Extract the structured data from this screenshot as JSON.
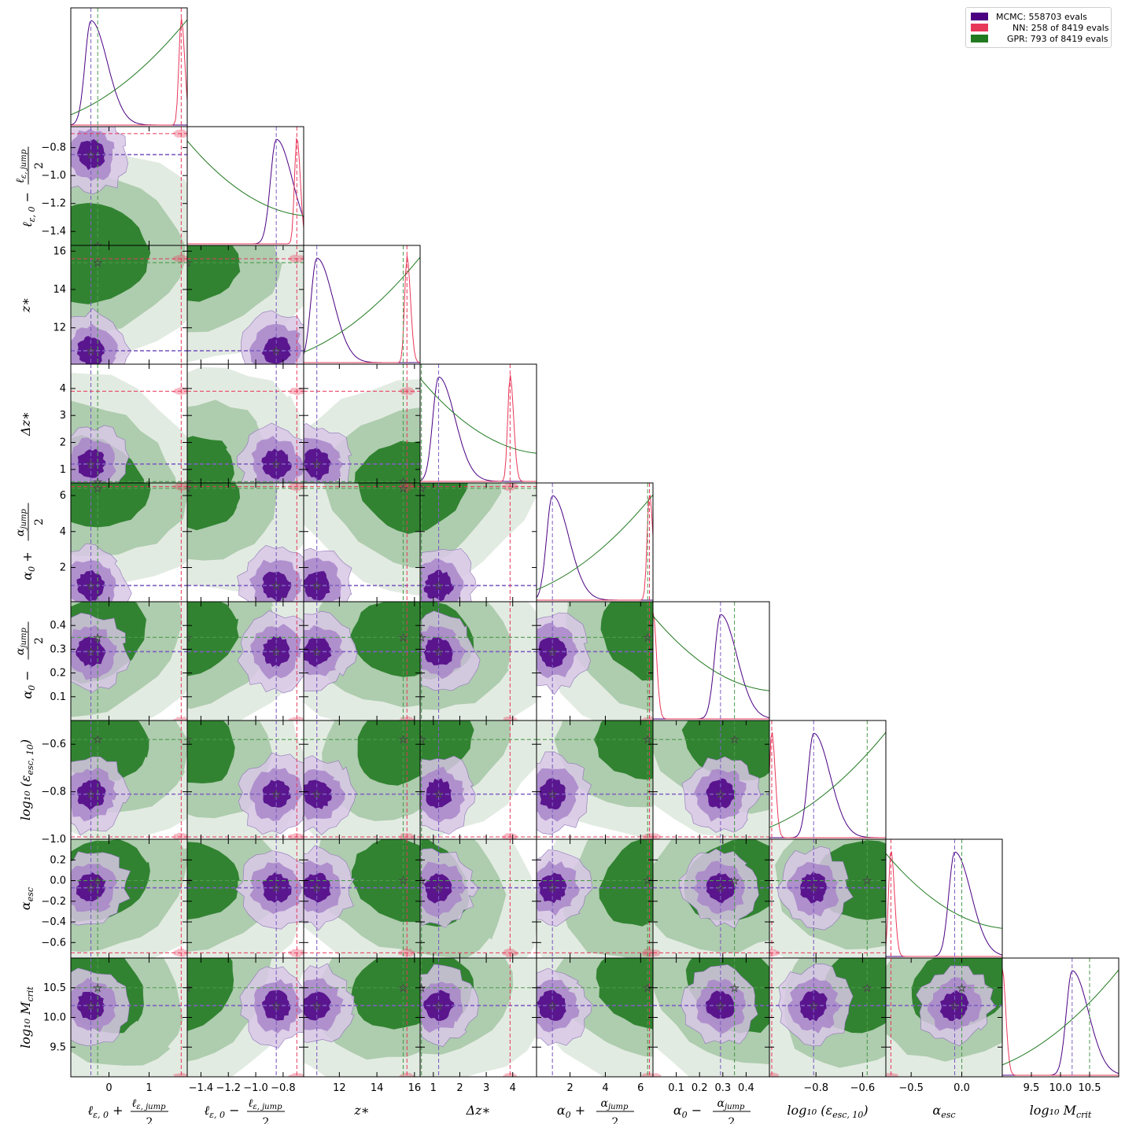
{
  "chart_data": {
    "type": "corner",
    "parameters": [
      {
        "id": "lsum",
        "tick_labels": [
          "0",
          "1"
        ],
        "tick_values": [
          0,
          1
        ],
        "range": [
          -0.95,
          1.95
        ],
        "axis_main": "ℓ",
        "axis_sub": "ε, 0",
        "axis_op": "+",
        "axis_frac_num": "ℓ",
        "axis_frac_num_sub": "ε, jump",
        "axis_frac_den": "2",
        "is_fraction": true
      },
      {
        "id": "ldiff",
        "tick_labels": [
          "−1.4",
          "−1.2",
          "−1.0",
          "−0.8"
        ],
        "tick_values": [
          -1.4,
          -1.2,
          -1.0,
          -0.8
        ],
        "range": [
          -1.5,
          -0.65
        ],
        "axis_main": "ℓ",
        "axis_sub": "ε, 0",
        "axis_op": "−",
        "axis_frac_num": "ℓ",
        "axis_frac_num_sub": "ε, jump",
        "axis_frac_den": "2",
        "is_fraction": true
      },
      {
        "id": "zstar",
        "tick_labels": [
          "12",
          "14",
          "16"
        ],
        "tick_values": [
          12,
          14,
          16
        ],
        "range": [
          10.1,
          16.3
        ],
        "axis_label": "z∗",
        "is_fraction": false
      },
      {
        "id": "dz",
        "tick_labels": [
          "1",
          "2",
          "3",
          "4"
        ],
        "tick_values": [
          1,
          2,
          3,
          4
        ],
        "range": [
          0.5,
          4.9
        ],
        "axis_label": "Δz∗",
        "is_fraction": false
      },
      {
        "id": "asum",
        "tick_labels": [
          "2",
          "4",
          "6"
        ],
        "tick_values": [
          2,
          4,
          6
        ],
        "range": [
          0.1,
          6.7
        ],
        "axis_main": "α",
        "axis_sub": "0",
        "axis_op": "+",
        "axis_frac_num": "α",
        "axis_frac_num_sub": "jump",
        "axis_frac_den": "2",
        "is_fraction": true
      },
      {
        "id": "adiff",
        "tick_labels": [
          "0.1",
          "0.2",
          "0.3",
          "0.4"
        ],
        "tick_values": [
          0.1,
          0.2,
          0.3,
          0.4
        ],
        "range": [
          0.0,
          0.5
        ],
        "axis_main": "α",
        "axis_sub": "0",
        "axis_op": "−",
        "axis_frac_num": "α",
        "axis_frac_num_sub": "jump",
        "axis_frac_den": "2",
        "is_fraction": true
      },
      {
        "id": "logeps",
        "tick_labels": [
          "−0.8",
          "−0.6"
        ],
        "tick_values": [
          -0.8,
          -0.6
        ],
        "range": [
          -1.0,
          -0.5
        ],
        "axis_label": "log₁₀ (ε",
        "axis_label_sub": "esc, 10",
        "axis_label_end": ")",
        "is_fraction": false
      },
      {
        "id": "aesc",
        "tick_labels": [
          "−0.5",
          "0.0"
        ],
        "tick_values": [
          -0.5,
          0.0
        ],
        "range": [
          -0.75,
          0.4
        ],
        "axis_label": "α",
        "axis_label_sub": "esc",
        "is_fraction": false
      },
      {
        "id": "logm",
        "tick_labels": [
          "9.5",
          "10.0",
          "10.5"
        ],
        "tick_values": [
          9.5,
          10.0,
          10.5
        ],
        "range": [
          9.0,
          11.0
        ],
        "axis_label": "log₁₀ M",
        "axis_label_sub": "crit",
        "is_fraction": false
      }
    ],
    "y_ticks": {
      "1": {
        "labels": [
          "−0.8",
          "−1.0",
          "−1.2",
          "−1.4"
        ],
        "values": [
          -0.8,
          -1.0,
          -1.2,
          -1.4
        ]
      },
      "2": {
        "labels": [
          "16",
          "14",
          "12"
        ],
        "values": [
          16,
          14,
          12
        ]
      },
      "3": {
        "labels": [
          "4",
          "3",
          "2",
          "1"
        ],
        "values": [
          4,
          3,
          2,
          1
        ]
      },
      "4": {
        "labels": [
          "6",
          "4",
          "2"
        ],
        "values": [
          6,
          4,
          2
        ]
      },
      "5": {
        "labels": [
          "0.4",
          "0.3",
          "0.2",
          "0.1"
        ],
        "values": [
          0.4,
          0.3,
          0.2,
          0.1
        ]
      },
      "6": {
        "labels": [
          "−0.6",
          "−0.8",
          "−1.0"
        ],
        "values": [
          -0.6,
          -0.8,
          -1.0
        ]
      },
      "7": {
        "labels": [
          "0.2",
          "0.0",
          "−0.2",
          "−0.4",
          "−0.6"
        ],
        "values": [
          0.2,
          0.0,
          -0.2,
          -0.4,
          -0.6
        ]
      },
      "8": {
        "labels": [
          "10.5",
          "10.0",
          "9.5"
        ],
        "values": [
          10.5,
          10.0,
          9.5
        ]
      }
    },
    "mcmc_best": [
      -0.45,
      -0.85,
      10.8,
      1.2,
      1.0,
      0.29,
      -0.81,
      -0.07,
      10.2
    ],
    "gpr_best": [
      -0.28,
      -1.5,
      15.4,
      0.55,
      6.4,
      0.35,
      -0.58,
      0.0,
      10.5
    ],
    "nn_best": [
      1.8,
      -0.7,
      15.6,
      3.9,
      6.5,
      0.0,
      -0.99,
      -0.7,
      9.0
    ],
    "legend": [
      {
        "label": "MCMC: 558703 evals",
        "color": "#4b0082"
      },
      {
        "label": "      NN: 258 of 8419 evals",
        "color": "#e8385a"
      },
      {
        "label": "    GPR: 793 of 8419 evals",
        "color": "#217a21"
      }
    ],
    "colors": {
      "mcmc": "#4b0082",
      "nn": "#e8385a",
      "gpr": "#217a21"
    }
  }
}
